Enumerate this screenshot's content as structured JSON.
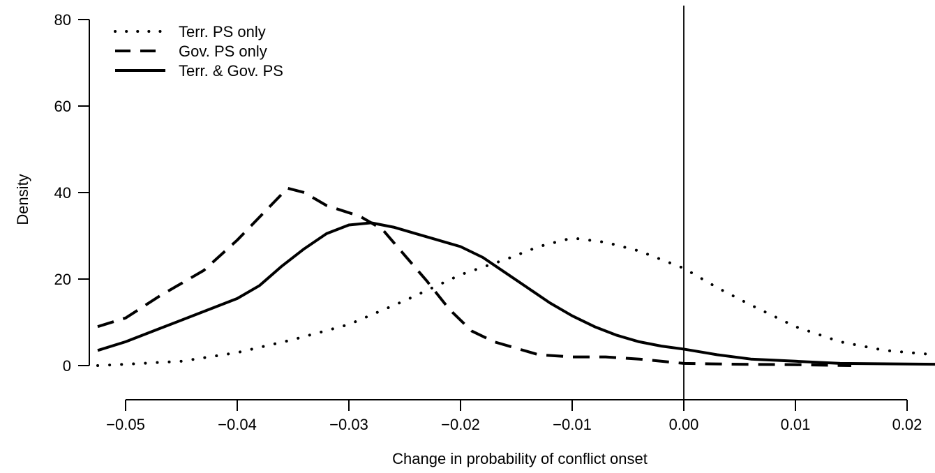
{
  "chart_data": {
    "type": "line",
    "title": "",
    "xlabel": "Change in probability of conflict onset",
    "ylabel": "Density",
    "xlim": [
      -0.0525,
      0.0225
    ],
    "ylim": [
      0,
      80
    ],
    "x_ticks": [
      -0.05,
      -0.04,
      -0.03,
      -0.02,
      -0.01,
      0.0,
      0.01,
      0.02
    ],
    "x_tick_labels": [
      "−0.05",
      "−0.04",
      "−0.03",
      "−0.02",
      "−0.01",
      "0.00",
      "0.01",
      "0.02"
    ],
    "y_ticks": [
      0,
      20,
      40,
      60,
      80
    ],
    "y_tick_labels": [
      "0",
      "20",
      "40",
      "60",
      "80"
    ],
    "grid": false,
    "legend_position": "top-left",
    "reference_line": {
      "orientation": "vertical",
      "x": 0.0
    },
    "series": [
      {
        "name": "Terr. PS only",
        "line_style": "dotted",
        "points": [
          [
            -0.0525,
            0.0
          ],
          [
            -0.05,
            0.3
          ],
          [
            -0.045,
            1.0
          ],
          [
            -0.04,
            3.0
          ],
          [
            -0.035,
            6.0
          ],
          [
            -0.03,
            9.5
          ],
          [
            -0.025,
            15.0
          ],
          [
            -0.02,
            21.0
          ],
          [
            -0.016,
            24.5
          ],
          [
            -0.013,
            27.5
          ],
          [
            -0.01,
            29.5
          ],
          [
            -0.007,
            28.5
          ],
          [
            -0.004,
            26.5
          ],
          [
            -0.002,
            24.5
          ],
          [
            0.0,
            22.5
          ],
          [
            0.003,
            18.0
          ],
          [
            0.006,
            14.0
          ],
          [
            0.01,
            9.0
          ],
          [
            0.014,
            5.5
          ],
          [
            0.018,
            3.5
          ],
          [
            0.0225,
            2.5
          ]
        ]
      },
      {
        "name": "Gov. PS only",
        "line_style": "dashed",
        "points": [
          [
            -0.0525,
            9.0
          ],
          [
            -0.05,
            11.0
          ],
          [
            -0.047,
            16.0
          ],
          [
            -0.043,
            22.0
          ],
          [
            -0.04,
            29.0
          ],
          [
            -0.037,
            37.0
          ],
          [
            -0.0355,
            41.0
          ],
          [
            -0.034,
            40.0
          ],
          [
            -0.032,
            37.0
          ],
          [
            -0.029,
            34.5
          ],
          [
            -0.027,
            31.5
          ],
          [
            -0.025,
            25.5
          ],
          [
            -0.023,
            19.5
          ],
          [
            -0.021,
            13.0
          ],
          [
            -0.019,
            8.0
          ],
          [
            -0.017,
            5.5
          ],
          [
            -0.015,
            4.0
          ],
          [
            -0.013,
            2.5
          ],
          [
            -0.01,
            2.0
          ],
          [
            -0.007,
            2.0
          ],
          [
            -0.004,
            1.5
          ],
          [
            0.0,
            0.5
          ],
          [
            0.005,
            0.3
          ],
          [
            0.01,
            0.2
          ],
          [
            0.015,
            0.0
          ]
        ]
      },
      {
        "name": "Terr. & Gov. PS",
        "line_style": "solid",
        "points": [
          [
            -0.0525,
            3.5
          ],
          [
            -0.05,
            5.5
          ],
          [
            -0.047,
            8.5
          ],
          [
            -0.043,
            12.5
          ],
          [
            -0.04,
            15.5
          ],
          [
            -0.038,
            18.5
          ],
          [
            -0.036,
            23.0
          ],
          [
            -0.034,
            27.0
          ],
          [
            -0.032,
            30.5
          ],
          [
            -0.03,
            32.5
          ],
          [
            -0.028,
            33.0
          ],
          [
            -0.026,
            32.0
          ],
          [
            -0.024,
            30.5
          ],
          [
            -0.022,
            29.0
          ],
          [
            -0.02,
            27.5
          ],
          [
            -0.018,
            25.0
          ],
          [
            -0.016,
            21.5
          ],
          [
            -0.014,
            18.0
          ],
          [
            -0.012,
            14.5
          ],
          [
            -0.01,
            11.5
          ],
          [
            -0.008,
            9.0
          ],
          [
            -0.006,
            7.0
          ],
          [
            -0.004,
            5.5
          ],
          [
            -0.002,
            4.5
          ],
          [
            0.0,
            3.8
          ],
          [
            0.003,
            2.5
          ],
          [
            0.006,
            1.5
          ],
          [
            0.01,
            1.0
          ],
          [
            0.014,
            0.5
          ],
          [
            0.0225,
            0.3
          ]
        ]
      }
    ]
  }
}
